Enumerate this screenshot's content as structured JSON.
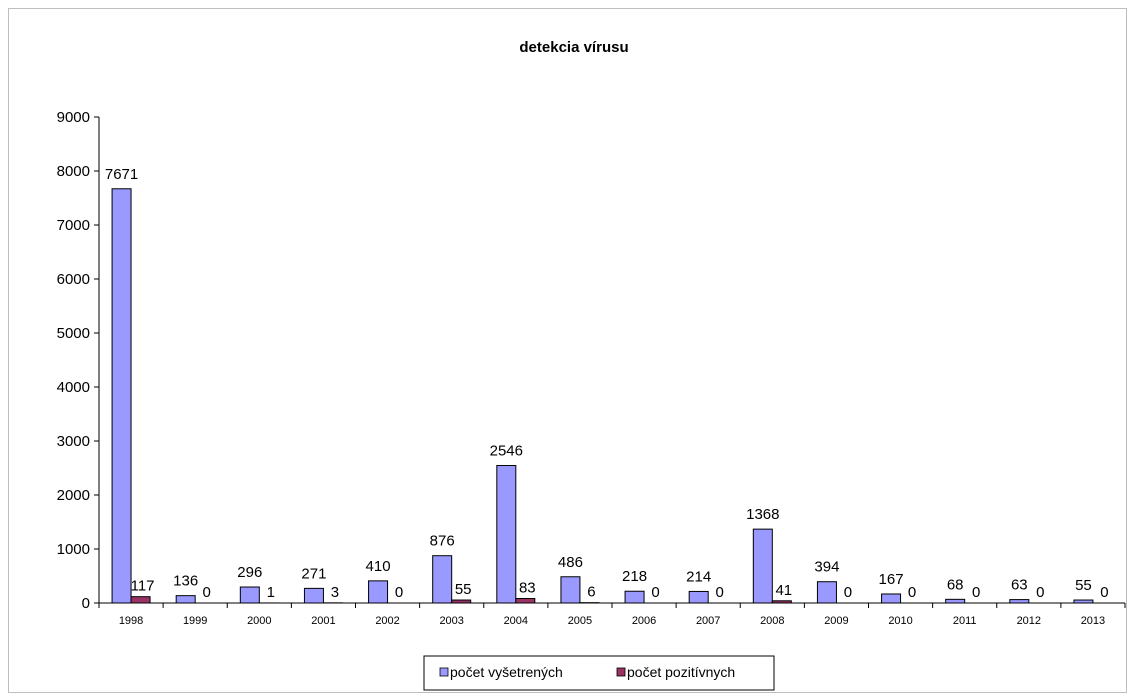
{
  "chart_data": {
    "type": "bar",
    "title": "detekcia vírusu",
    "xlabel": "",
    "ylabel": "",
    "categories": [
      "1998",
      "1999",
      "2000",
      "2001",
      "2002",
      "2003",
      "2004",
      "2005",
      "2006",
      "2007",
      "2008",
      "2009",
      "2010",
      "2011",
      "2012",
      "2013"
    ],
    "series": [
      {
        "name": "počet vyšetrených",
        "color": "#9999ff",
        "values": [
          7671,
          136,
          296,
          271,
          410,
          876,
          2546,
          486,
          218,
          214,
          1368,
          394,
          167,
          68,
          63,
          55
        ],
        "labels": [
          "7671",
          "136",
          "296",
          "271",
          "410",
          "876",
          "2546",
          "486",
          "218",
          "214",
          "1368",
          "394",
          "167",
          "68",
          "63",
          "55"
        ]
      },
      {
        "name": "počet pozitívnych",
        "color": "#993366",
        "values": [
          117,
          0,
          1,
          3,
          0,
          55,
          83,
          6,
          0,
          0,
          41,
          0,
          0,
          0,
          0,
          0
        ],
        "labels": [
          "117",
          "0",
          "1",
          "3",
          "0",
          "55",
          "83",
          "6",
          "0",
          "0",
          "41",
          "0",
          "0",
          "0",
          "0",
          "0"
        ]
      }
    ],
    "yticks": [
      "0",
      "1000",
      "2000",
      "3000",
      "4000",
      "5000",
      "6000",
      "7000",
      "8000",
      "9000"
    ],
    "ylim": [
      0,
      9000
    ],
    "grid": false,
    "legend_position": "bottom"
  }
}
